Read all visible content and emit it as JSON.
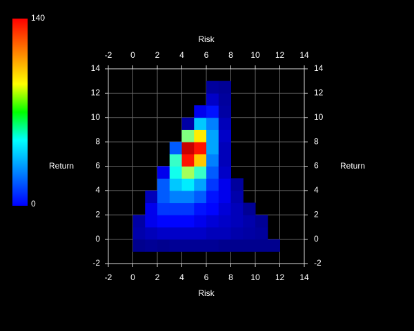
{
  "chart_data": {
    "type": "heatmap",
    "xlabel": "Risk",
    "ylabel": "Return",
    "xlim": [
      -2,
      14
    ],
    "ylim": [
      -2,
      14
    ],
    "xticks": [
      -2,
      0,
      2,
      4,
      6,
      8,
      10,
      12,
      14
    ],
    "yticks": [
      -2,
      0,
      2,
      4,
      6,
      8,
      10,
      12,
      14
    ],
    "grid": true,
    "colormap": "jet",
    "zlim": [
      0,
      140
    ],
    "x_bins": [
      0,
      1,
      2,
      3,
      4,
      5,
      6,
      7,
      8,
      9,
      10,
      11,
      12
    ],
    "y_bins": [
      -1,
      0,
      1,
      2,
      3,
      4,
      5,
      6,
      7,
      8,
      9,
      10,
      11,
      12,
      13
    ],
    "z": [
      [
        2,
        3,
        2,
        3,
        3,
        3,
        3,
        2,
        2,
        2,
        2,
        2
      ],
      [
        6,
        8,
        10,
        10,
        10,
        10,
        8,
        8,
        6,
        5,
        4,
        null
      ],
      [
        5,
        15,
        18,
        18,
        18,
        15,
        12,
        10,
        8,
        6,
        3,
        null
      ],
      [
        null,
        15,
        25,
        25,
        25,
        20,
        18,
        12,
        8,
        3,
        null,
        null
      ],
      [
        null,
        8,
        30,
        35,
        35,
        30,
        20,
        15,
        6,
        null,
        null,
        null
      ],
      [
        null,
        null,
        30,
        45,
        50,
        40,
        25,
        15,
        4,
        null,
        null,
        null
      ],
      [
        null,
        null,
        15,
        55,
        75,
        60,
        30,
        10,
        null,
        null,
        null,
        null
      ],
      [
        null,
        null,
        null,
        60,
        120,
        95,
        35,
        8,
        null,
        null,
        null,
        null
      ],
      [
        null,
        null,
        null,
        30,
        130,
        120,
        40,
        8,
        null,
        null,
        null,
        null
      ],
      [
        null,
        null,
        null,
        null,
        70,
        90,
        40,
        10,
        null,
        null,
        null,
        null
      ],
      [
        null,
        null,
        null,
        null,
        5,
        45,
        35,
        8,
        null,
        null,
        null,
        null
      ],
      [
        null,
        null,
        null,
        null,
        null,
        15,
        20,
        5,
        null,
        null,
        null,
        null
      ],
      [
        null,
        null,
        null,
        null,
        null,
        null,
        10,
        4,
        null,
        null,
        null,
        null
      ],
      [
        null,
        null,
        null,
        null,
        null,
        null,
        4,
        3,
        null,
        null,
        null,
        null
      ]
    ]
  }
}
